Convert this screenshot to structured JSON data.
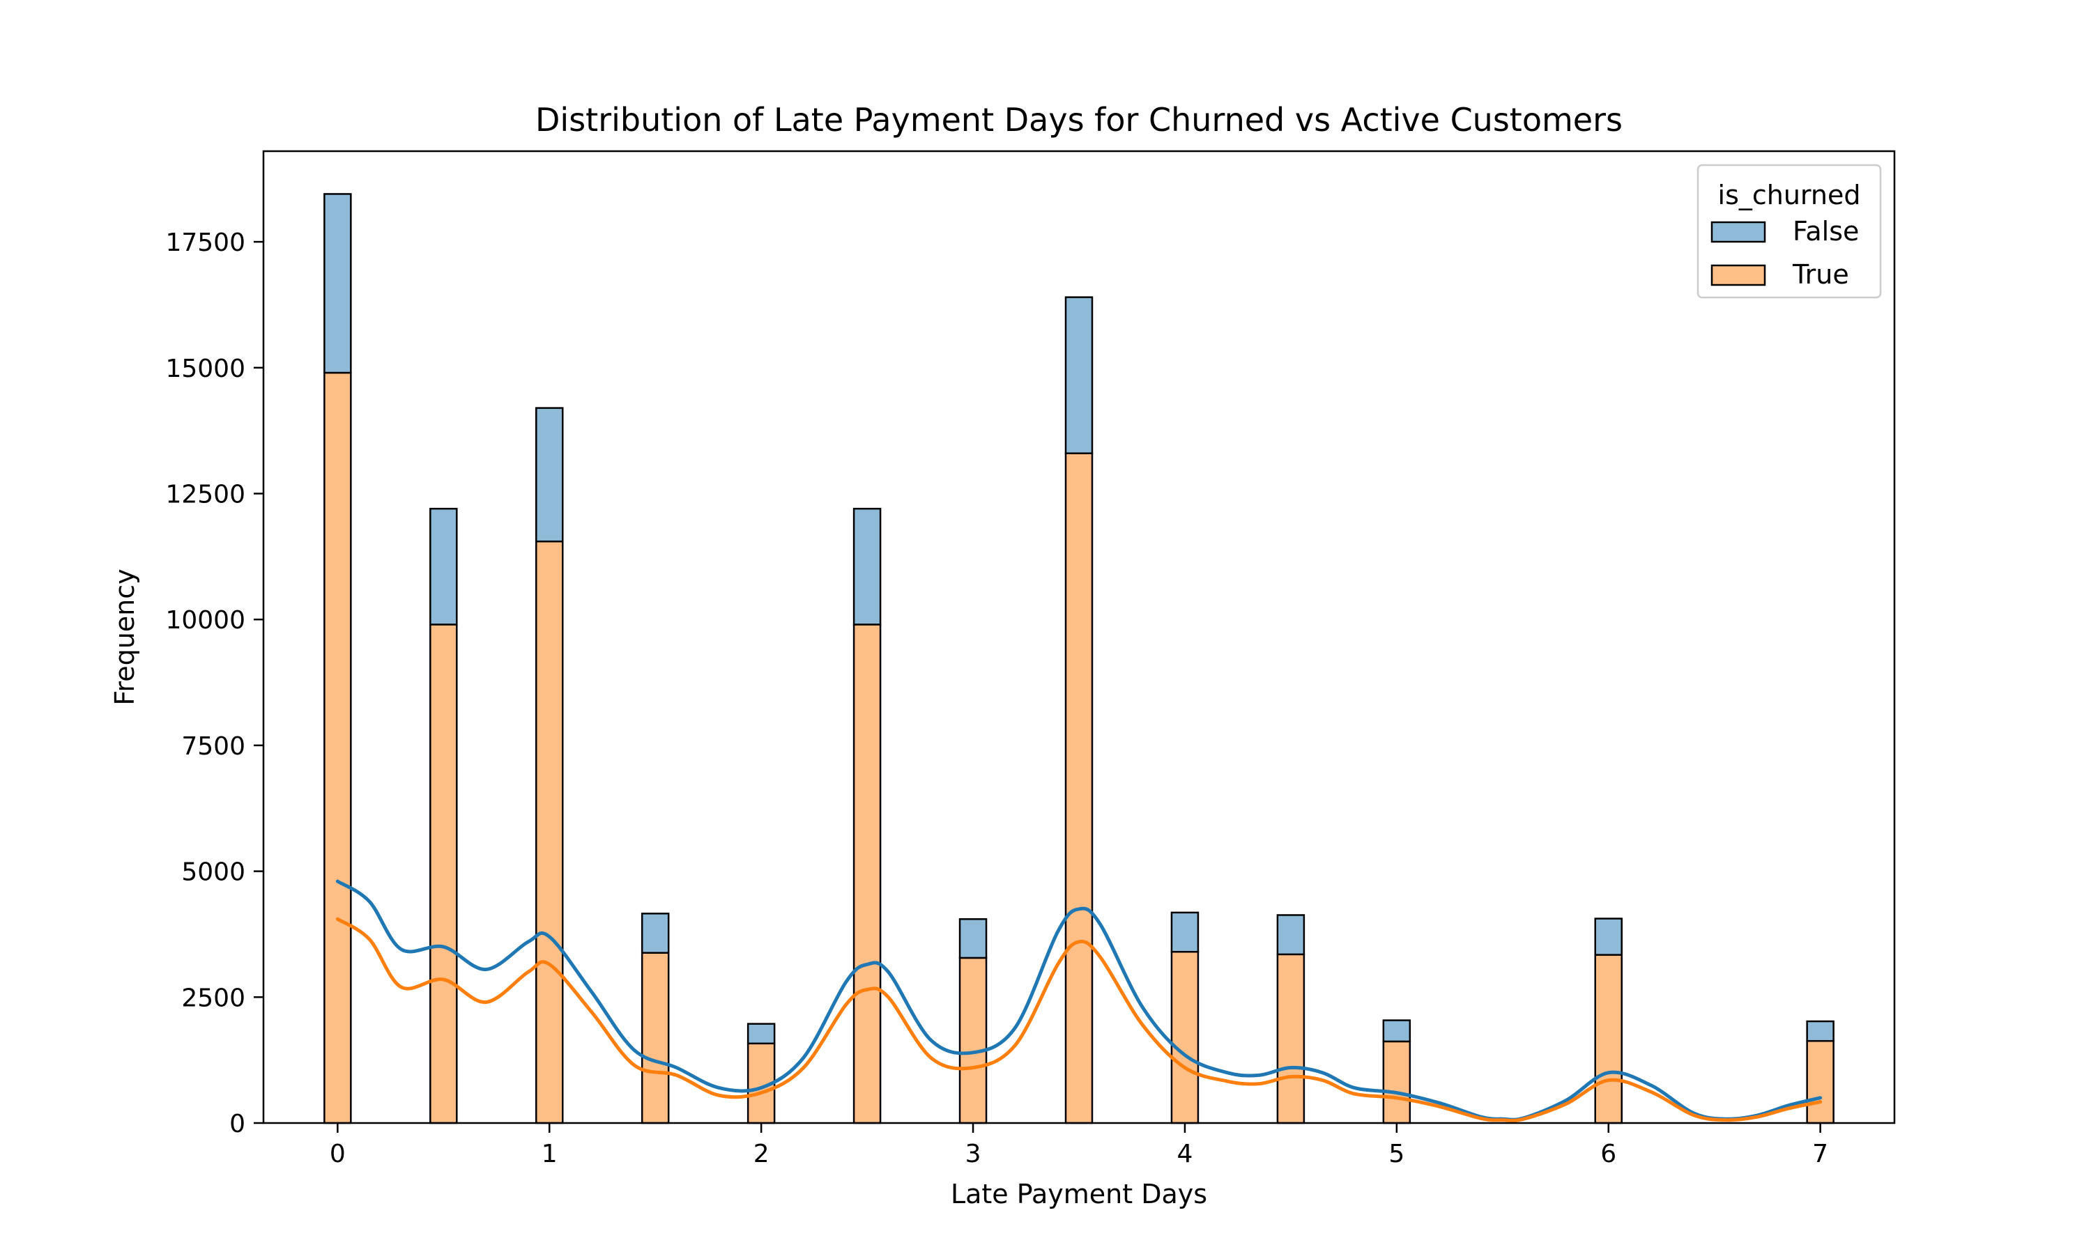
{
  "chart_data": {
    "type": "bar",
    "stacked": true,
    "title": "Distribution of Late Payment Days for Churned vs Active Customers",
    "xlabel": "Late Payment Days",
    "ylabel": "Frequency",
    "xlim": [
      -0.35,
      7.35
    ],
    "ylim": [
      0,
      19300
    ],
    "xticks": [
      0,
      1,
      2,
      3,
      4,
      5,
      6,
      7
    ],
    "yticks": [
      0,
      2500,
      5000,
      7500,
      10000,
      12500,
      15000,
      17500
    ],
    "bin_width": 0.125,
    "legend": {
      "title": "is_churned",
      "placement": "upper right"
    },
    "x": [
      0,
      0.5,
      1,
      1.5,
      2,
      2.5,
      3,
      3.5,
      4,
      4.5,
      5,
      6,
      7
    ],
    "series": [
      {
        "name": "False",
        "color": "#1f77b4",
        "fill": "#8fbbd9",
        "values": [
          3550,
          2300,
          2650,
          780,
          390,
          2300,
          770,
          3100,
          780,
          780,
          420,
          720,
          390
        ]
      },
      {
        "name": "True",
        "color": "#ff7f0e",
        "fill": "#ffbf86",
        "values": [
          14900,
          9900,
          11550,
          3380,
          1580,
          9900,
          3280,
          13300,
          3400,
          3350,
          1620,
          3340,
          1630
        ]
      }
    ],
    "kde": [
      {
        "name": "False",
        "color": "#1f77b4",
        "x": [
          0,
          0.15,
          0.3,
          0.5,
          0.7,
          0.9,
          1.0,
          1.2,
          1.4,
          1.6,
          1.8,
          2.0,
          2.2,
          2.4,
          2.5,
          2.6,
          2.8,
          3.0,
          3.2,
          3.4,
          3.5,
          3.6,
          3.8,
          4.0,
          4.2,
          4.35,
          4.5,
          4.65,
          4.8,
          5.0,
          5.2,
          5.4,
          5.5,
          5.6,
          5.8,
          6.0,
          6.2,
          6.4,
          6.55,
          6.7,
          6.85,
          7.0
        ],
        "y": [
          4800,
          4400,
          3450,
          3500,
          3050,
          3600,
          3700,
          2600,
          1450,
          1100,
          700,
          700,
          1300,
          2800,
          3150,
          3000,
          1650,
          1400,
          1900,
          3800,
          4250,
          3950,
          2300,
          1350,
          1000,
          950,
          1100,
          1000,
          700,
          600,
          400,
          120,
          80,
          100,
          450,
          1000,
          750,
          200,
          80,
          150,
          350,
          500
        ]
      },
      {
        "name": "True",
        "color": "#ff7f0e",
        "x": [
          0,
          0.15,
          0.3,
          0.5,
          0.7,
          0.9,
          1.0,
          1.2,
          1.4,
          1.6,
          1.8,
          2.0,
          2.2,
          2.4,
          2.5,
          2.6,
          2.8,
          3.0,
          3.2,
          3.4,
          3.5,
          3.6,
          3.8,
          4.0,
          4.2,
          4.35,
          4.5,
          4.65,
          4.8,
          5.0,
          5.2,
          5.4,
          5.5,
          5.6,
          5.8,
          6.0,
          6.2,
          6.4,
          6.55,
          6.7,
          6.85,
          7.0
        ],
        "y": [
          4050,
          3650,
          2700,
          2850,
          2400,
          3000,
          3150,
          2200,
          1150,
          950,
          550,
          600,
          1100,
          2350,
          2650,
          2500,
          1300,
          1100,
          1550,
          3150,
          3600,
          3300,
          1950,
          1100,
          830,
          780,
          920,
          850,
          580,
          500,
          330,
          90,
          60,
          80,
          380,
          850,
          620,
          160,
          60,
          120,
          290,
          420
        ]
      }
    ]
  }
}
